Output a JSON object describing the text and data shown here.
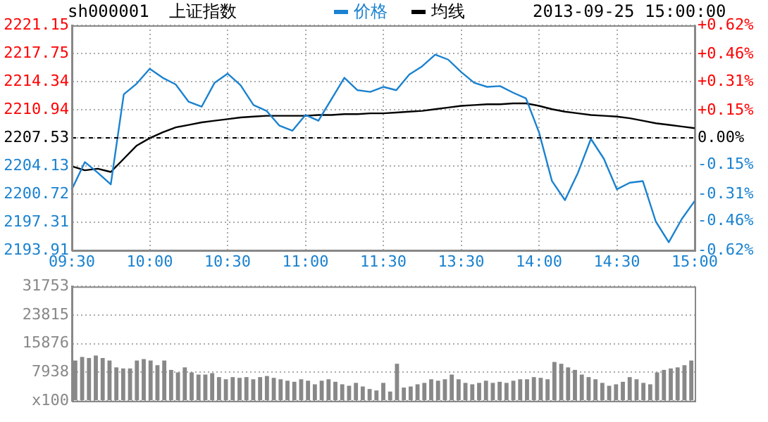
{
  "chart_data": [
    {
      "type": "line",
      "title": "上证指数",
      "subtitle": "sh000001",
      "annotations": [
        "2013-09-25 15:00:00"
      ],
      "legend": "top",
      "grid": true,
      "marker": "none",
      "categories": [
        "09:30",
        null,
        null,
        null,
        null,
        null,
        "10:00",
        null,
        null,
        null,
        null,
        null,
        "10:30",
        null,
        null,
        null,
        null,
        null,
        "11:00",
        null,
        null,
        null,
        null,
        null,
        "11:30",
        null,
        null,
        null,
        null,
        null,
        "13:30",
        null,
        null,
        null,
        null,
        null,
        "14:00",
        null,
        null,
        null,
        null,
        null,
        "14:30",
        null,
        null,
        null,
        null,
        null,
        "15:00"
      ],
      "ylim": [
        2193.91,
        2221.15
      ],
      "yticks": [
        2193.91,
        2197.31,
        2200.72,
        2204.13,
        2207.53,
        2210.94,
        2214.34,
        2217.75,
        2221.15
      ],
      "y2lim": [
        -0.62,
        0.62
      ],
      "y2ticks": [
        {
          "value": -0.62,
          "label": "-0.62%"
        },
        {
          "value": -0.46,
          "label": "-0.46%"
        },
        {
          "value": -0.31,
          "label": "-0.31%"
        },
        {
          "value": -0.15,
          "label": "-0.15%"
        },
        {
          "value": 0,
          "label": "0.00%"
        },
        {
          "value": 0.15,
          "label": "+0.15%"
        },
        {
          "value": 0.31,
          "label": "+0.31%"
        },
        {
          "value": 0.46,
          "label": "+0.46%"
        },
        {
          "value": 0.62,
          "label": "+0.62%"
        }
      ],
      "ref_lines": [
        {
          "axis": "y",
          "value": 2207.53,
          "line_style": "dashed",
          "color": "#000000"
        }
      ],
      "series": [
        {
          "name": "价格",
          "color": "#1a82d0",
          "values": [
            2201.3,
            2204.6,
            2203.3,
            2201.9,
            2212.8,
            2214.1,
            2215.9,
            2214.8,
            2214.0,
            2211.9,
            2211.3,
            2214.2,
            2215.3,
            2213.9,
            2211.5,
            2210.8,
            2209.0,
            2208.4,
            2210.3,
            2209.6,
            2212.2,
            2214.8,
            2213.3,
            2213.1,
            2213.7,
            2213.3,
            2215.2,
            2216.2,
            2217.6,
            2217.0,
            2215.5,
            2214.2,
            2213.7,
            2213.8,
            2213.0,
            2212.3,
            2208.2,
            2202.3,
            2200.0,
            2203.3,
            2207.4,
            2205.0,
            2201.3,
            2202.1,
            2202.3,
            2197.4,
            2194.9,
            2197.7,
            2199.9
          ]
        },
        {
          "name": "均线",
          "color": "#000000",
          "values": [
            2204.1,
            2203.6,
            2203.8,
            2203.4,
            2205.0,
            2206.6,
            2207.5,
            2208.2,
            2208.8,
            2209.1,
            2209.4,
            2209.6,
            2209.8,
            2210.0,
            2210.1,
            2210.2,
            2210.2,
            2210.2,
            2210.2,
            2210.3,
            2210.3,
            2210.4,
            2210.4,
            2210.5,
            2210.5,
            2210.6,
            2210.7,
            2210.8,
            2211.0,
            2211.2,
            2211.4,
            2211.5,
            2211.6,
            2211.6,
            2211.7,
            2211.7,
            2211.4,
            2211.0,
            2210.7,
            2210.5,
            2210.3,
            2210.2,
            2210.1,
            2209.9,
            2209.6,
            2209.3,
            2209.1,
            2208.9,
            2208.7
          ]
        }
      ]
    },
    {
      "type": "bar",
      "tick_labels": "y",
      "grid": true,
      "color": "#888888",
      "ylim": [
        0,
        31753
      ],
      "yticks": [
        {
          "value": 0,
          "label": "x100"
        },
        7938,
        15876,
        23815,
        31753
      ],
      "categories": [
        null,
        null,
        null,
        null,
        null,
        null,
        null,
        null,
        null,
        null,
        null,
        null,
        null,
        null,
        null,
        null,
        null,
        null,
        null,
        null,
        null,
        null,
        null,
        null,
        null,
        null,
        null,
        null,
        null,
        null,
        null,
        null,
        null,
        null,
        null,
        null,
        null,
        null,
        null,
        null,
        null,
        null,
        null,
        null,
        null,
        null,
        null,
        null,
        null,
        null,
        null,
        null,
        null,
        null,
        null,
        null,
        null,
        null,
        null,
        null,
        null,
        null,
        null,
        null,
        null,
        null,
        null,
        null,
        null,
        null,
        null,
        null,
        null,
        null,
        null,
        null,
        null,
        null,
        null,
        null,
        null,
        null,
        null,
        null,
        null,
        null,
        null,
        null,
        null,
        null,
        null
      ],
      "values": [
        11200,
        12200,
        11900,
        12600,
        11900,
        11200,
        9300,
        9000,
        9000,
        11200,
        11600,
        11200,
        9900,
        11200,
        8600,
        7900,
        9300,
        7900,
        7300,
        7300,
        7700,
        6600,
        6000,
        6600,
        6400,
        6600,
        6000,
        6600,
        6900,
        6400,
        6000,
        5600,
        5300,
        6000,
        5600,
        4600,
        5600,
        6000,
        5300,
        4600,
        4200,
        5000,
        4000,
        3300,
        2900,
        5000,
        2600,
        10300,
        3700,
        4000,
        4600,
        5000,
        6000,
        5600,
        6000,
        7300,
        6000,
        5000,
        4600,
        5000,
        5600,
        5000,
        5300,
        5000,
        5600,
        6000,
        6000,
        6600,
        6400,
        6000,
        10800,
        10300,
        9300,
        8600,
        7300,
        6600,
        6000,
        5000,
        4200,
        4600,
        5300,
        6600,
        6000,
        5000,
        4600,
        7900,
        8600,
        9000,
        9300,
        9900,
        11200
      ]
    }
  ]
}
